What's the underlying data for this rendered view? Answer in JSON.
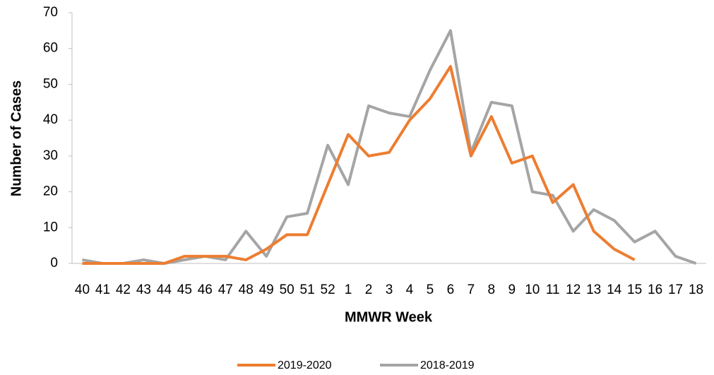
{
  "chart_data": {
    "type": "line",
    "xlabel": "MMWR Week",
    "ylabel": "Number of Cases",
    "categories": [
      "40",
      "41",
      "42",
      "43",
      "44",
      "45",
      "46",
      "47",
      "48",
      "49",
      "50",
      "51",
      "52",
      "1",
      "2",
      "3",
      "4",
      "5",
      "6",
      "7",
      "8",
      "9",
      "10",
      "11",
      "12",
      "13",
      "14",
      "15",
      "16",
      "17",
      "18"
    ],
    "series": [
      {
        "name": "2019-2020",
        "color": "#ed7d31",
        "values": [
          0,
          0,
          0,
          0,
          0,
          2,
          2,
          2,
          1,
          4,
          8,
          8,
          22,
          36,
          30,
          31,
          40,
          46,
          55,
          30,
          41,
          28,
          30,
          17,
          22,
          9,
          4,
          1,
          null,
          null,
          null
        ]
      },
      {
        "name": "2018-2019",
        "color": "#a5a5a5",
        "values": [
          1,
          0,
          0,
          1,
          0,
          1,
          2,
          1,
          9,
          2,
          13,
          14,
          33,
          22,
          44,
          42,
          41,
          54,
          65,
          31,
          45,
          44,
          20,
          19,
          9,
          15,
          12,
          6,
          9,
          2,
          0
        ]
      }
    ],
    "ylim": [
      0,
      70
    ],
    "yticks": [
      0,
      10,
      20,
      30,
      40,
      50,
      60,
      70
    ],
    "grid": false,
    "legend": "bottom"
  }
}
